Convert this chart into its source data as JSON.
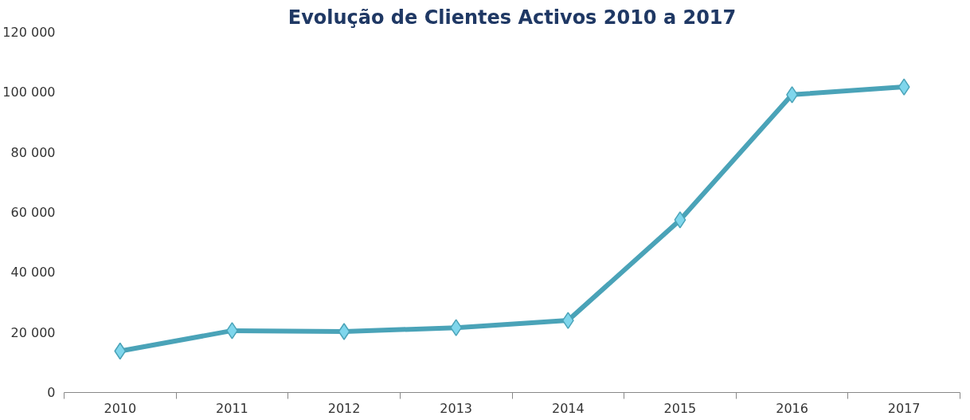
{
  "chart_data": {
    "type": "line",
    "title": "Evolução de Clientes Activos 2010 a 2017",
    "categories": [
      "2010",
      "2011",
      "2012",
      "2013",
      "2014",
      "2015",
      "2016",
      "2017"
    ],
    "series": [
      {
        "color": "#4aa3b8",
        "values": [
          13800,
          20600,
          20300,
          21600,
          24000,
          57500,
          99200,
          101800
        ]
      }
    ],
    "ylim": [
      0,
      120000
    ],
    "yticks": [
      {
        "value": 0,
        "label": "0"
      },
      {
        "value": 20000,
        "label": "20 000"
      },
      {
        "value": 40000,
        "label": "40 000"
      },
      {
        "value": 60000,
        "label": "60 000"
      },
      {
        "value": 80000,
        "label": "80 000"
      },
      {
        "value": 100000,
        "label": "100 000"
      },
      {
        "value": 120000,
        "label": "120 000"
      }
    ],
    "grid": false,
    "marker": "diamond",
    "line_style": "solid"
  }
}
